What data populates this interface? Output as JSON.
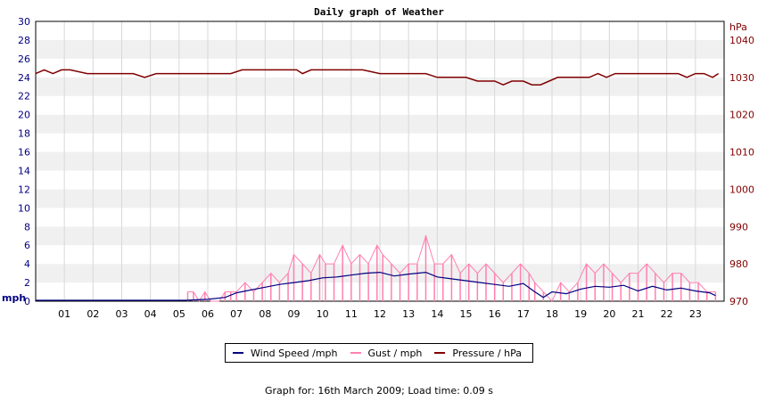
{
  "chart_data": {
    "type": "line",
    "title": "Daily graph of Weather",
    "x_tick_labels": [
      "01",
      "02",
      "03",
      "04",
      "05",
      "06",
      "07",
      "08",
      "09",
      "10",
      "11",
      "12",
      "13",
      "14",
      "15",
      "16",
      "17",
      "18",
      "19",
      "20",
      "21",
      "22",
      "23"
    ],
    "x_range": [
      0,
      24
    ],
    "left_axis": {
      "unit": "mph",
      "range": [
        0,
        30
      ],
      "ticks": [
        "0",
        "2",
        "4",
        "6",
        "8",
        "10",
        "12",
        "14",
        "16",
        "18",
        "20",
        "22",
        "24",
        "26",
        "28",
        "30"
      ]
    },
    "right_axis": {
      "unit": "hPa",
      "range": [
        970,
        1045
      ],
      "ticks": [
        "970",
        "980",
        "990",
        "1000",
        "1010",
        "1020",
        "1030",
        "1040"
      ]
    },
    "grid": true,
    "legend_position": "bottom",
    "series": [
      {
        "name": "Wind Speed /mph",
        "axis": "left",
        "color": "#000080",
        "x": [
          0,
          5.2,
          6.0,
          6.6,
          7.0,
          7.5,
          8.0,
          8.5,
          9.0,
          9.5,
          10.0,
          10.5,
          11.0,
          11.5,
          12.0,
          12.5,
          13.0,
          13.6,
          14.0,
          14.5,
          15.0,
          15.5,
          16.0,
          16.5,
          17.0,
          17.4,
          17.7,
          18.0,
          18.5,
          19.0,
          19.5,
          20.0,
          20.5,
          21.0,
          21.5,
          22.0,
          22.5,
          23.0,
          23.5,
          23.7
        ],
        "values": [
          0.1,
          0.1,
          0.2,
          0.4,
          0.9,
          1.2,
          1.5,
          1.8,
          2.0,
          2.2,
          2.5,
          2.6,
          2.8,
          3.0,
          3.1,
          2.7,
          2.9,
          3.1,
          2.6,
          2.4,
          2.2,
          2.0,
          1.8,
          1.6,
          1.9,
          1.0,
          0.4,
          1.0,
          0.8,
          1.3,
          1.6,
          1.5,
          1.7,
          1.1,
          1.6,
          1.2,
          1.4,
          1.1,
          0.9,
          0.6
        ]
      },
      {
        "name": "Gust / mph",
        "axis": "left",
        "color": "#ff80b0",
        "x": [
          5.3,
          5.5,
          5.7,
          5.9,
          6.1,
          6.4,
          6.6,
          6.8,
          7.0,
          7.3,
          7.6,
          7.9,
          8.2,
          8.5,
          8.8,
          9.0,
          9.3,
          9.6,
          9.9,
          10.1,
          10.4,
          10.7,
          11.0,
          11.3,
          11.6,
          11.9,
          12.1,
          12.4,
          12.7,
          13.0,
          13.3,
          13.6,
          13.9,
          14.2,
          14.5,
          14.8,
          15.1,
          15.4,
          15.7,
          16.0,
          16.3,
          16.6,
          16.9,
          17.2,
          17.4,
          17.7,
          18.0,
          18.3,
          18.6,
          18.9,
          19.2,
          19.5,
          19.8,
          20.1,
          20.4,
          20.7,
          21.0,
          21.3,
          21.6,
          21.9,
          22.2,
          22.5,
          22.8,
          23.1,
          23.4,
          23.7
        ],
        "values": [
          1,
          1,
          0,
          1,
          0,
          0,
          1,
          1,
          1,
          2,
          1,
          2,
          3,
          2,
          3,
          5,
          4,
          3,
          5,
          4,
          4,
          6,
          4,
          5,
          4,
          6,
          5,
          4,
          3,
          4,
          4,
          7,
          4,
          4,
          5,
          3,
          4,
          3,
          4,
          3,
          2,
          3,
          4,
          3,
          2,
          1,
          0,
          2,
          1,
          2,
          4,
          3,
          4,
          3,
          2,
          3,
          3,
          4,
          3,
          2,
          3,
          3,
          2,
          2,
          1,
          1
        ]
      },
      {
        "name": "Pressure / hPa",
        "axis": "right",
        "color": "#800000",
        "x": [
          0,
          0.3,
          0.6,
          0.9,
          1.2,
          1.8,
          2.2,
          2.8,
          3.4,
          3.8,
          4.2,
          5.0,
          6.0,
          6.8,
          7.2,
          7.6,
          8.2,
          8.8,
          9.1,
          9.3,
          9.6,
          9.9,
          10.2,
          10.8,
          11.4,
          12.0,
          12.6,
          13.2,
          13.6,
          14.0,
          14.6,
          15.0,
          15.4,
          15.8,
          16.0,
          16.3,
          16.6,
          17.0,
          17.3,
          17.6,
          17.9,
          18.2,
          18.6,
          19.0,
          19.3,
          19.6,
          19.9,
          20.2,
          20.6,
          21.0,
          21.4,
          21.8,
          22.1,
          22.4,
          22.7,
          23.0,
          23.3,
          23.6,
          23.8
        ],
        "values": [
          1031,
          1032,
          1031,
          1032,
          1032,
          1031,
          1031,
          1031,
          1031,
          1030,
          1031,
          1031,
          1031,
          1031,
          1032,
          1032,
          1032,
          1032,
          1032,
          1031,
          1032,
          1032,
          1032,
          1032,
          1032,
          1031,
          1031,
          1031,
          1031,
          1030,
          1030,
          1030,
          1029,
          1029,
          1029,
          1028,
          1029,
          1029,
          1028,
          1028,
          1029,
          1030,
          1030,
          1030,
          1030,
          1031,
          1030,
          1031,
          1031,
          1031,
          1031,
          1031,
          1031,
          1031,
          1030,
          1031,
          1031,
          1030,
          1031
        ]
      }
    ]
  },
  "footer_text": "Graph for: 16th March 2009; Load time: 0.09 s"
}
